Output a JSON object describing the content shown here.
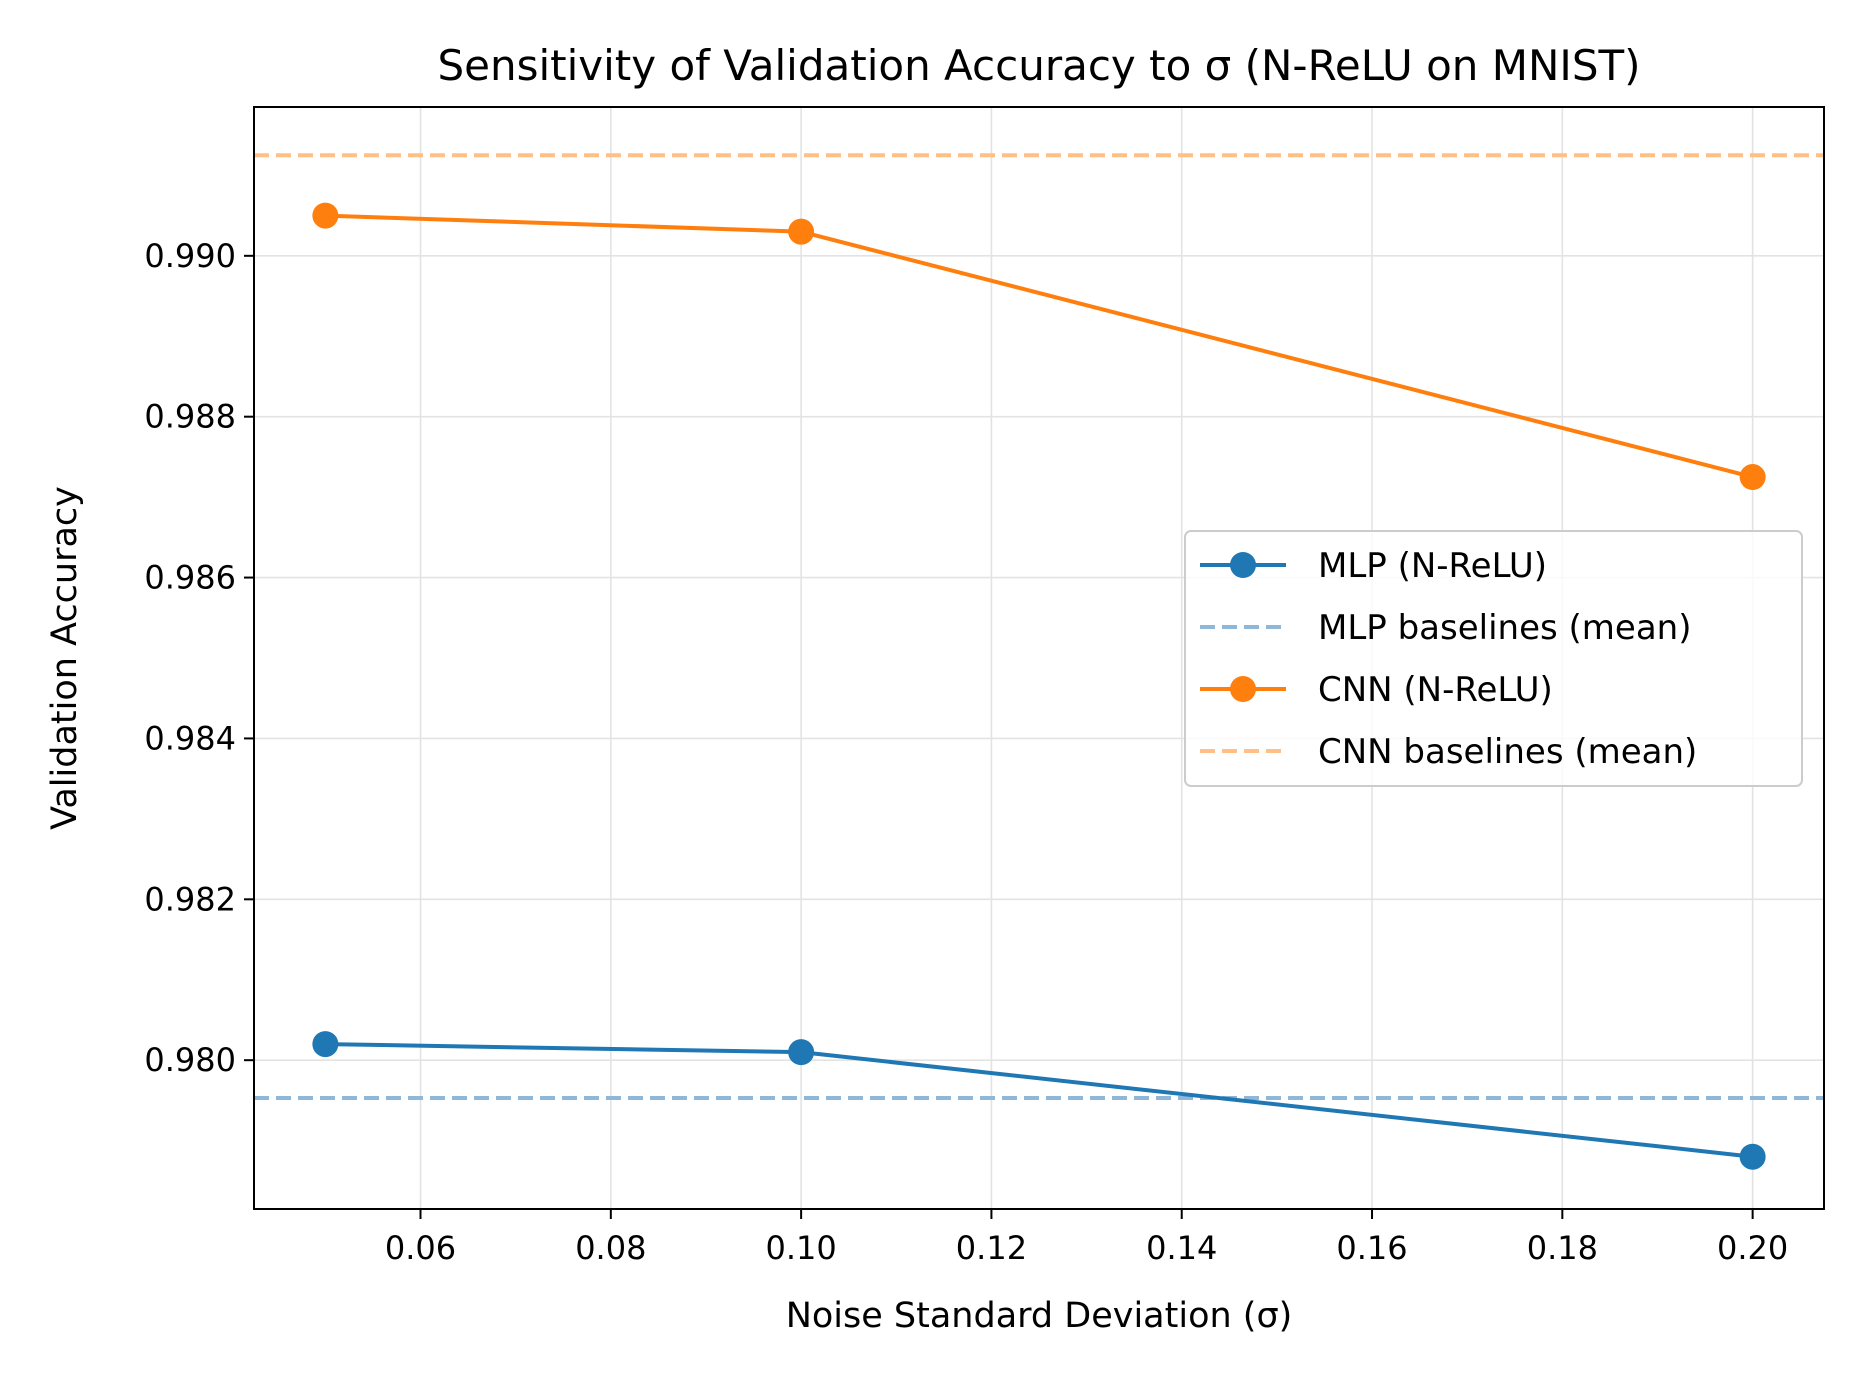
{
  "chart_data": {
    "type": "line",
    "title": "Sensitivity of Validation Accuracy to σ (N-ReLU on MNIST)",
    "xlabel": "Noise Standard Deviation (σ)",
    "ylabel": "Validation Accuracy",
    "xlim": [
      0.0425,
      0.2075
    ],
    "ylim": [
      0.97815,
      0.99185
    ],
    "xticks": [
      0.06,
      0.08,
      0.1,
      0.12,
      0.14,
      0.16,
      0.18,
      0.2
    ],
    "xtick_labels": [
      "0.06",
      "0.08",
      "0.10",
      "0.12",
      "0.14",
      "0.16",
      "0.18",
      "0.20"
    ],
    "yticks": [
      0.98,
      0.982,
      0.984,
      0.986,
      0.988,
      0.99
    ],
    "ytick_labels": [
      "0.980",
      "0.982",
      "0.984",
      "0.986",
      "0.988",
      "0.990"
    ],
    "grid": true,
    "legend_position": "center-right",
    "series": [
      {
        "name": "MLP (N-ReLU)",
        "kind": "line-marker",
        "color": "#1f77b4",
        "x": [
          0.05,
          0.1,
          0.2
        ],
        "y": [
          0.9802,
          0.9801,
          0.9788
        ]
      },
      {
        "name": "MLP baselines (mean)",
        "kind": "hline",
        "color": "#8fb8d8",
        "y": 0.97953
      },
      {
        "name": "CNN (N-ReLU)",
        "kind": "line-marker",
        "color": "#ff7f0e",
        "x": [
          0.05,
          0.1,
          0.2
        ],
        "y": [
          0.9905,
          0.9903,
          0.98725
        ]
      },
      {
        "name": "CNN baselines (mean)",
        "kind": "hline",
        "color": "#ffbf86",
        "y": 0.99125
      }
    ]
  }
}
